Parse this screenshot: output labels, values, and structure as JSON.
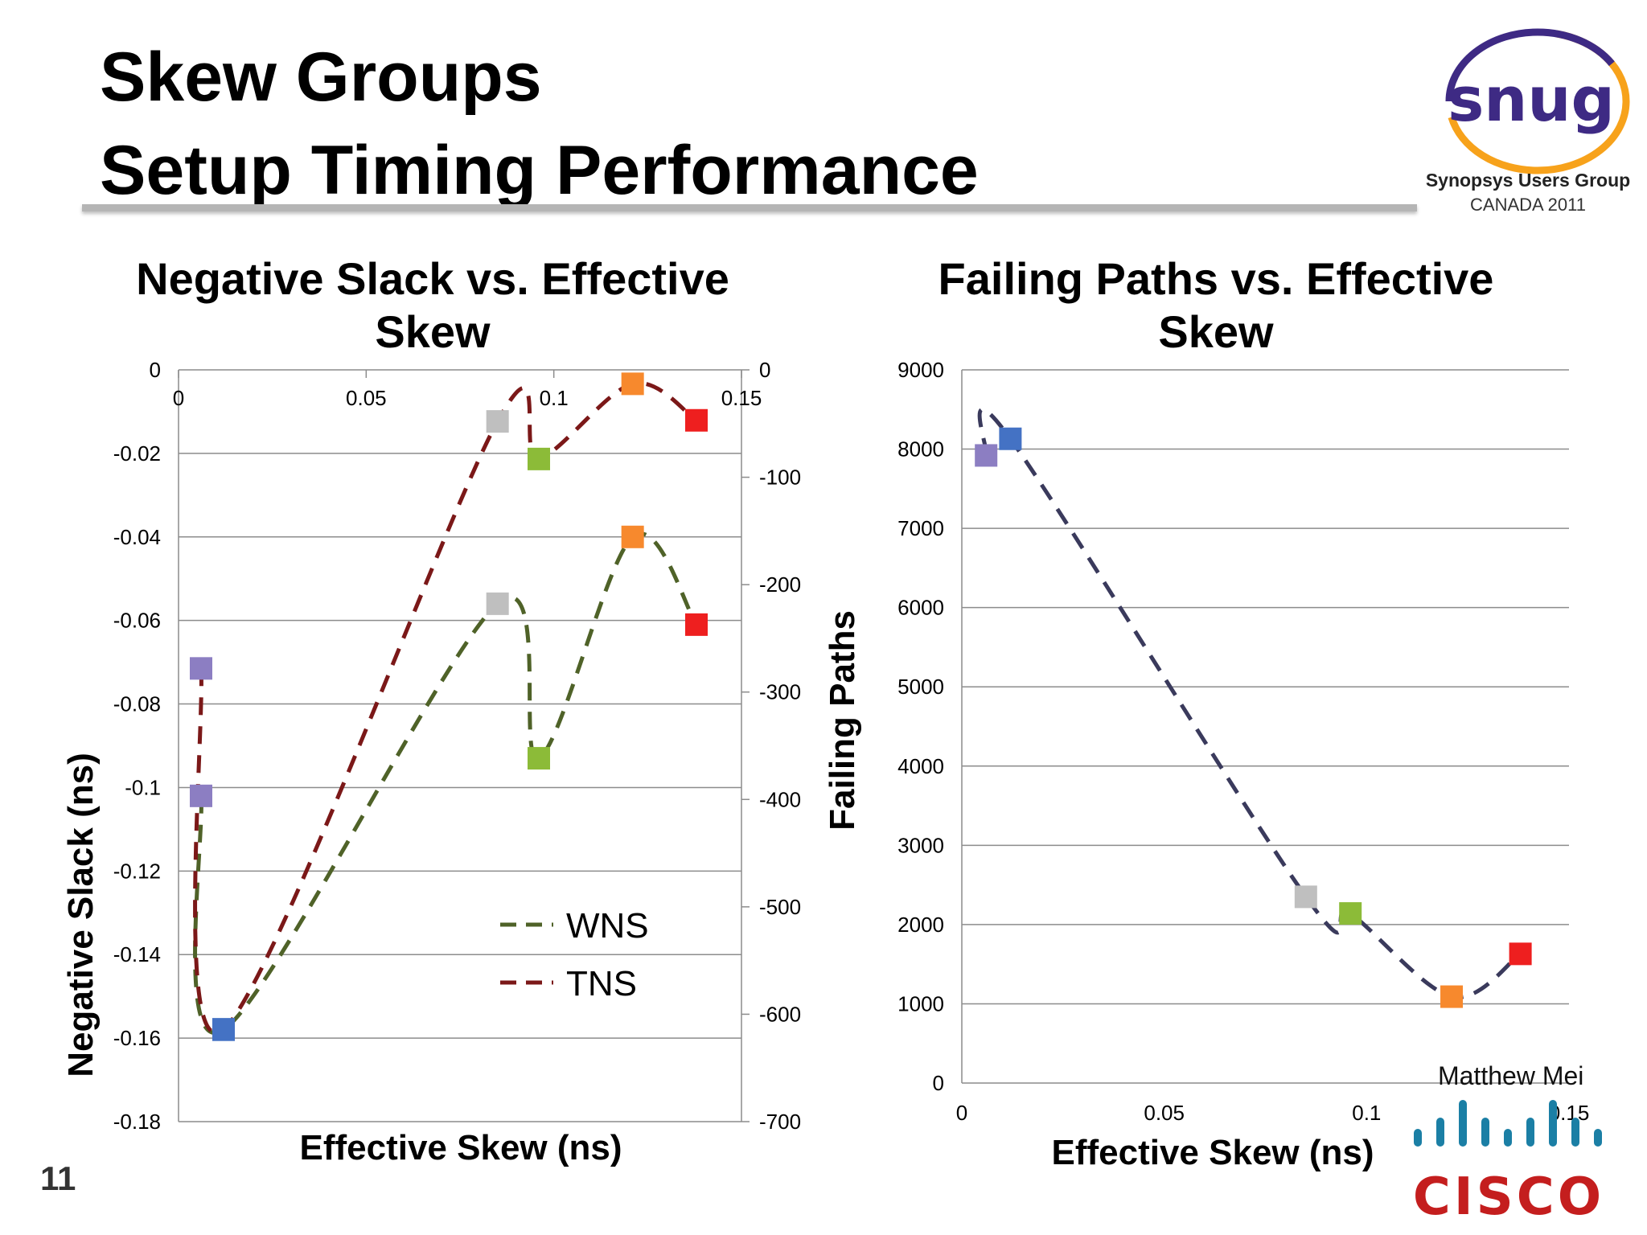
{
  "slide": {
    "title_line1": "Skew Groups",
    "title_line2": "Setup Timing Performance",
    "page_number": "11",
    "author": "Matthew Mei"
  },
  "logos": {
    "snug": {
      "wordmark": "snug",
      "line1": "Synopsys Users Group",
      "line2": "CANADA 2011"
    },
    "cisco": {
      "wordmark": "CISCO"
    }
  },
  "colors": {
    "purple": "#8c7ec2",
    "blue": "#4472c4",
    "gray": "#bfbfbf",
    "green": "#8cbb38",
    "orange": "#f7892d",
    "red": "#ee1f1f",
    "wns_line": "#4f6228",
    "tns_line": "#7b1818",
    "paths_line": "#3a3a5c"
  },
  "chart_data": [
    {
      "type": "scatter",
      "title": "Negative Slack vs. Effective Skew",
      "title_lines": [
        "Negative Slack vs. Effective",
        "Skew"
      ],
      "xlabel": "Effective Skew (ns)",
      "ylabel": "Negative Slack (ns)",
      "xlim": [
        0,
        0.15
      ],
      "ylim": [
        -0.18,
        0
      ],
      "y2lim": [
        -700,
        0
      ],
      "x_ticks": [
        "0",
        "0.05",
        "0.1",
        "0.15"
      ],
      "y_ticks": [
        "0",
        "-0.02",
        "-0.04",
        "-0.06",
        "-0.08",
        "-0.1",
        "-0.12",
        "-0.14",
        "-0.16",
        "-0.18"
      ],
      "y2_ticks": [
        "0",
        "-100",
        "-200",
        "-300",
        "-400",
        "-500",
        "-600",
        "-700"
      ],
      "grid": true,
      "legend_position": "bottom-right",
      "series": [
        {
          "name": "WNS",
          "axis": "left",
          "line_style": "dashed",
          "points": [
            {
              "x": 0.006,
              "y": -0.102,
              "marker": "purple"
            },
            {
              "x": 0.012,
              "y": -0.158,
              "marker": "blue"
            },
            {
              "x": 0.085,
              "y": -0.056,
              "marker": "gray"
            },
            {
              "x": 0.096,
              "y": -0.093,
              "marker": "green"
            },
            {
              "x": 0.121,
              "y": -0.04,
              "marker": "orange"
            },
            {
              "x": 0.138,
              "y": -0.061,
              "marker": "red"
            }
          ]
        },
        {
          "name": "TNS",
          "axis": "right",
          "line_style": "dashed",
          "points": [
            {
              "x": 0.006,
              "y": -278,
              "marker": "purple"
            },
            {
              "x": 0.012,
              "y": -614,
              "marker": "blue"
            },
            {
              "x": 0.085,
              "y": -48,
              "marker": "gray"
            },
            {
              "x": 0.096,
              "y": -83,
              "marker": "green"
            },
            {
              "x": 0.121,
              "y": -13,
              "marker": "orange"
            },
            {
              "x": 0.138,
              "y": -47,
              "marker": "red"
            }
          ]
        }
      ]
    },
    {
      "type": "scatter",
      "title": "Failing Paths vs. Effective Skew",
      "title_lines": [
        "Failing Paths vs. Effective",
        "Skew"
      ],
      "xlabel": "Effective Skew (ns)",
      "ylabel": "Failing Paths",
      "xlim": [
        0,
        0.15
      ],
      "ylim": [
        0,
        9000
      ],
      "x_ticks": [
        "0",
        "0.05",
        "0.1",
        "0.15"
      ],
      "y_ticks": [
        "9000",
        "8000",
        "7000",
        "6000",
        "5000",
        "4000",
        "3000",
        "2000",
        "1000",
        "0"
      ],
      "grid": true,
      "series": [
        {
          "axis": "left",
          "line_style": "dashed",
          "points": [
            {
              "x": 0.006,
              "y": 7920,
              "marker": "purple"
            },
            {
              "x": 0.012,
              "y": 8130,
              "marker": "blue"
            },
            {
              "x": 0.085,
              "y": 2350,
              "marker": "gray"
            },
            {
              "x": 0.096,
              "y": 2140,
              "marker": "green"
            },
            {
              "x": 0.121,
              "y": 1090,
              "marker": "orange"
            },
            {
              "x": 0.138,
              "y": 1630,
              "marker": "red"
            }
          ]
        }
      ]
    }
  ]
}
